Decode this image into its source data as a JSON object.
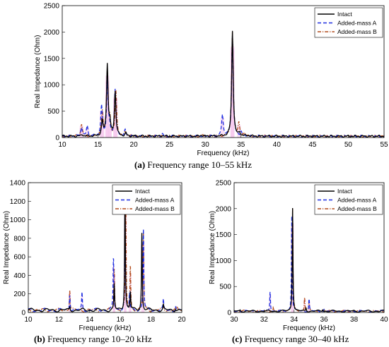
{
  "colors": {
    "intact": "#000000",
    "added_mass_a": "#1f2fe0",
    "added_mass_b": "#b24a1a",
    "shade": "#f6c7ec"
  },
  "chart_data": [
    {
      "id": "a",
      "type": "line",
      "caption_label": "(a)",
      "caption_text": " Frequency range 10–55 kHz",
      "xlabel": "Frequency (kHz)",
      "ylabel": "Real Impedance (Ohm)",
      "xlim": [
        10,
        55
      ],
      "ylim": [
        0,
        2500
      ],
      "xticks": [
        10,
        15,
        20,
        25,
        30,
        35,
        40,
        45,
        50,
        55
      ],
      "yticks": [
        0,
        500,
        1000,
        1500,
        2000,
        2500
      ],
      "grid": false,
      "legend_position": "top-right",
      "series": [
        {
          "name": "Intact",
          "style": "solid",
          "color_key": "intact",
          "peaks": [
            [
              12.8,
              60
            ],
            [
              15.6,
              300
            ],
            [
              16.3,
              1380
            ],
            [
              16.65,
              250
            ],
            [
              17.4,
              860
            ],
            [
              18.9,
              80
            ],
            [
              24.0,
              40
            ],
            [
              29.5,
              50
            ],
            [
              33.8,
              2030
            ],
            [
              34.8,
              90
            ],
            [
              36.0,
              40
            ]
          ]
        },
        {
          "name": "Added-mass A",
          "style": "dashed",
          "color_key": "added_mass_a",
          "peaks": [
            [
              12.7,
              200
            ],
            [
              13.5,
              210
            ],
            [
              15.5,
              590
            ],
            [
              16.3,
              1050
            ],
            [
              16.6,
              200
            ],
            [
              17.4,
              900
            ],
            [
              18.8,
              130
            ],
            [
              24.0,
              70
            ],
            [
              32.4,
              440
            ],
            [
              33.8,
              1940
            ],
            [
              35.0,
              100
            ]
          ]
        },
        {
          "name": "Added-mass B",
          "style": "dashdot",
          "color_key": "added_mass_b",
          "peaks": [
            [
              12.7,
              260
            ],
            [
              15.6,
              500
            ],
            [
              16.3,
              1250
            ],
            [
              16.65,
              320
            ],
            [
              17.5,
              870
            ],
            [
              18.8,
              100
            ],
            [
              29.5,
              50
            ],
            [
              33.8,
              2000
            ],
            [
              34.7,
              280
            ],
            [
              35.5,
              80
            ]
          ]
        }
      ]
    },
    {
      "id": "b",
      "type": "line",
      "caption_label": "(b)",
      "caption_text": " Frequency range 10–20 kHz",
      "xlabel": "Frequency (kHz)",
      "ylabel": "Real Impedance (Ohm)",
      "xlim": [
        10,
        20
      ],
      "ylim": [
        0,
        1400
      ],
      "xticks": [
        10,
        12,
        14,
        16,
        18,
        20
      ],
      "yticks": [
        0,
        200,
        400,
        600,
        800,
        1000,
        1200,
        1400
      ],
      "grid": false,
      "legend_position": "top-right",
      "series": [
        {
          "name": "Intact",
          "style": "solid",
          "color_key": "intact",
          "peaks": [
            [
              12.7,
              60
            ],
            [
              15.6,
              300
            ],
            [
              16.3,
              1370
            ],
            [
              16.65,
              220
            ],
            [
              17.4,
              860
            ],
            [
              18.8,
              80
            ],
            [
              19.6,
              50
            ]
          ]
        },
        {
          "name": "Added-mass A",
          "style": "dashed",
          "color_key": "added_mass_a",
          "peaks": [
            [
              12.7,
              200
            ],
            [
              13.5,
              210
            ],
            [
              15.55,
              590
            ],
            [
              16.3,
              1050
            ],
            [
              16.6,
              200
            ],
            [
              17.5,
              900
            ],
            [
              18.8,
              130
            ],
            [
              19.6,
              60
            ]
          ]
        },
        {
          "name": "Added-mass B",
          "style": "dashdot",
          "color_key": "added_mass_b",
          "peaks": [
            [
              12.7,
              250
            ],
            [
              15.6,
              480
            ],
            [
              16.35,
              1240
            ],
            [
              16.65,
              500
            ],
            [
              17.5,
              860
            ],
            [
              18.8,
              100
            ],
            [
              19.7,
              50
            ]
          ]
        }
      ]
    },
    {
      "id": "c",
      "type": "line",
      "caption_label": "(c)",
      "caption_text": " Frequency range 30–40 kHz",
      "xlabel": "Frequency (kHz)",
      "ylabel": "Real Impedance (Ohm)",
      "xlim": [
        30,
        40
      ],
      "ylim": [
        0,
        2500
      ],
      "xticks": [
        30,
        32,
        34,
        36,
        38,
        40
      ],
      "yticks": [
        0,
        500,
        1000,
        1500,
        2000,
        2500
      ],
      "grid": false,
      "legend_position": "top-right",
      "series": [
        {
          "name": "Intact",
          "style": "solid",
          "color_key": "intact",
          "peaks": [
            [
              30.4,
              50
            ],
            [
              33.9,
              2030
            ],
            [
              34.8,
              90
            ],
            [
              35.9,
              60
            ],
            [
              38.0,
              30
            ]
          ]
        },
        {
          "name": "Added-mass A",
          "style": "dashed",
          "color_key": "added_mass_a",
          "peaks": [
            [
              30.4,
              40
            ],
            [
              32.4,
              410
            ],
            [
              33.85,
              1940
            ],
            [
              35.0,
              260
            ],
            [
              36.0,
              60
            ]
          ]
        },
        {
          "name": "Added-mass B",
          "style": "dashdot",
          "color_key": "added_mass_b",
          "peaks": [
            [
              32.6,
              90
            ],
            [
              33.9,
              2000
            ],
            [
              34.7,
              300
            ],
            [
              35.0,
              200
            ],
            [
              36.0,
              50
            ]
          ]
        }
      ]
    }
  ]
}
